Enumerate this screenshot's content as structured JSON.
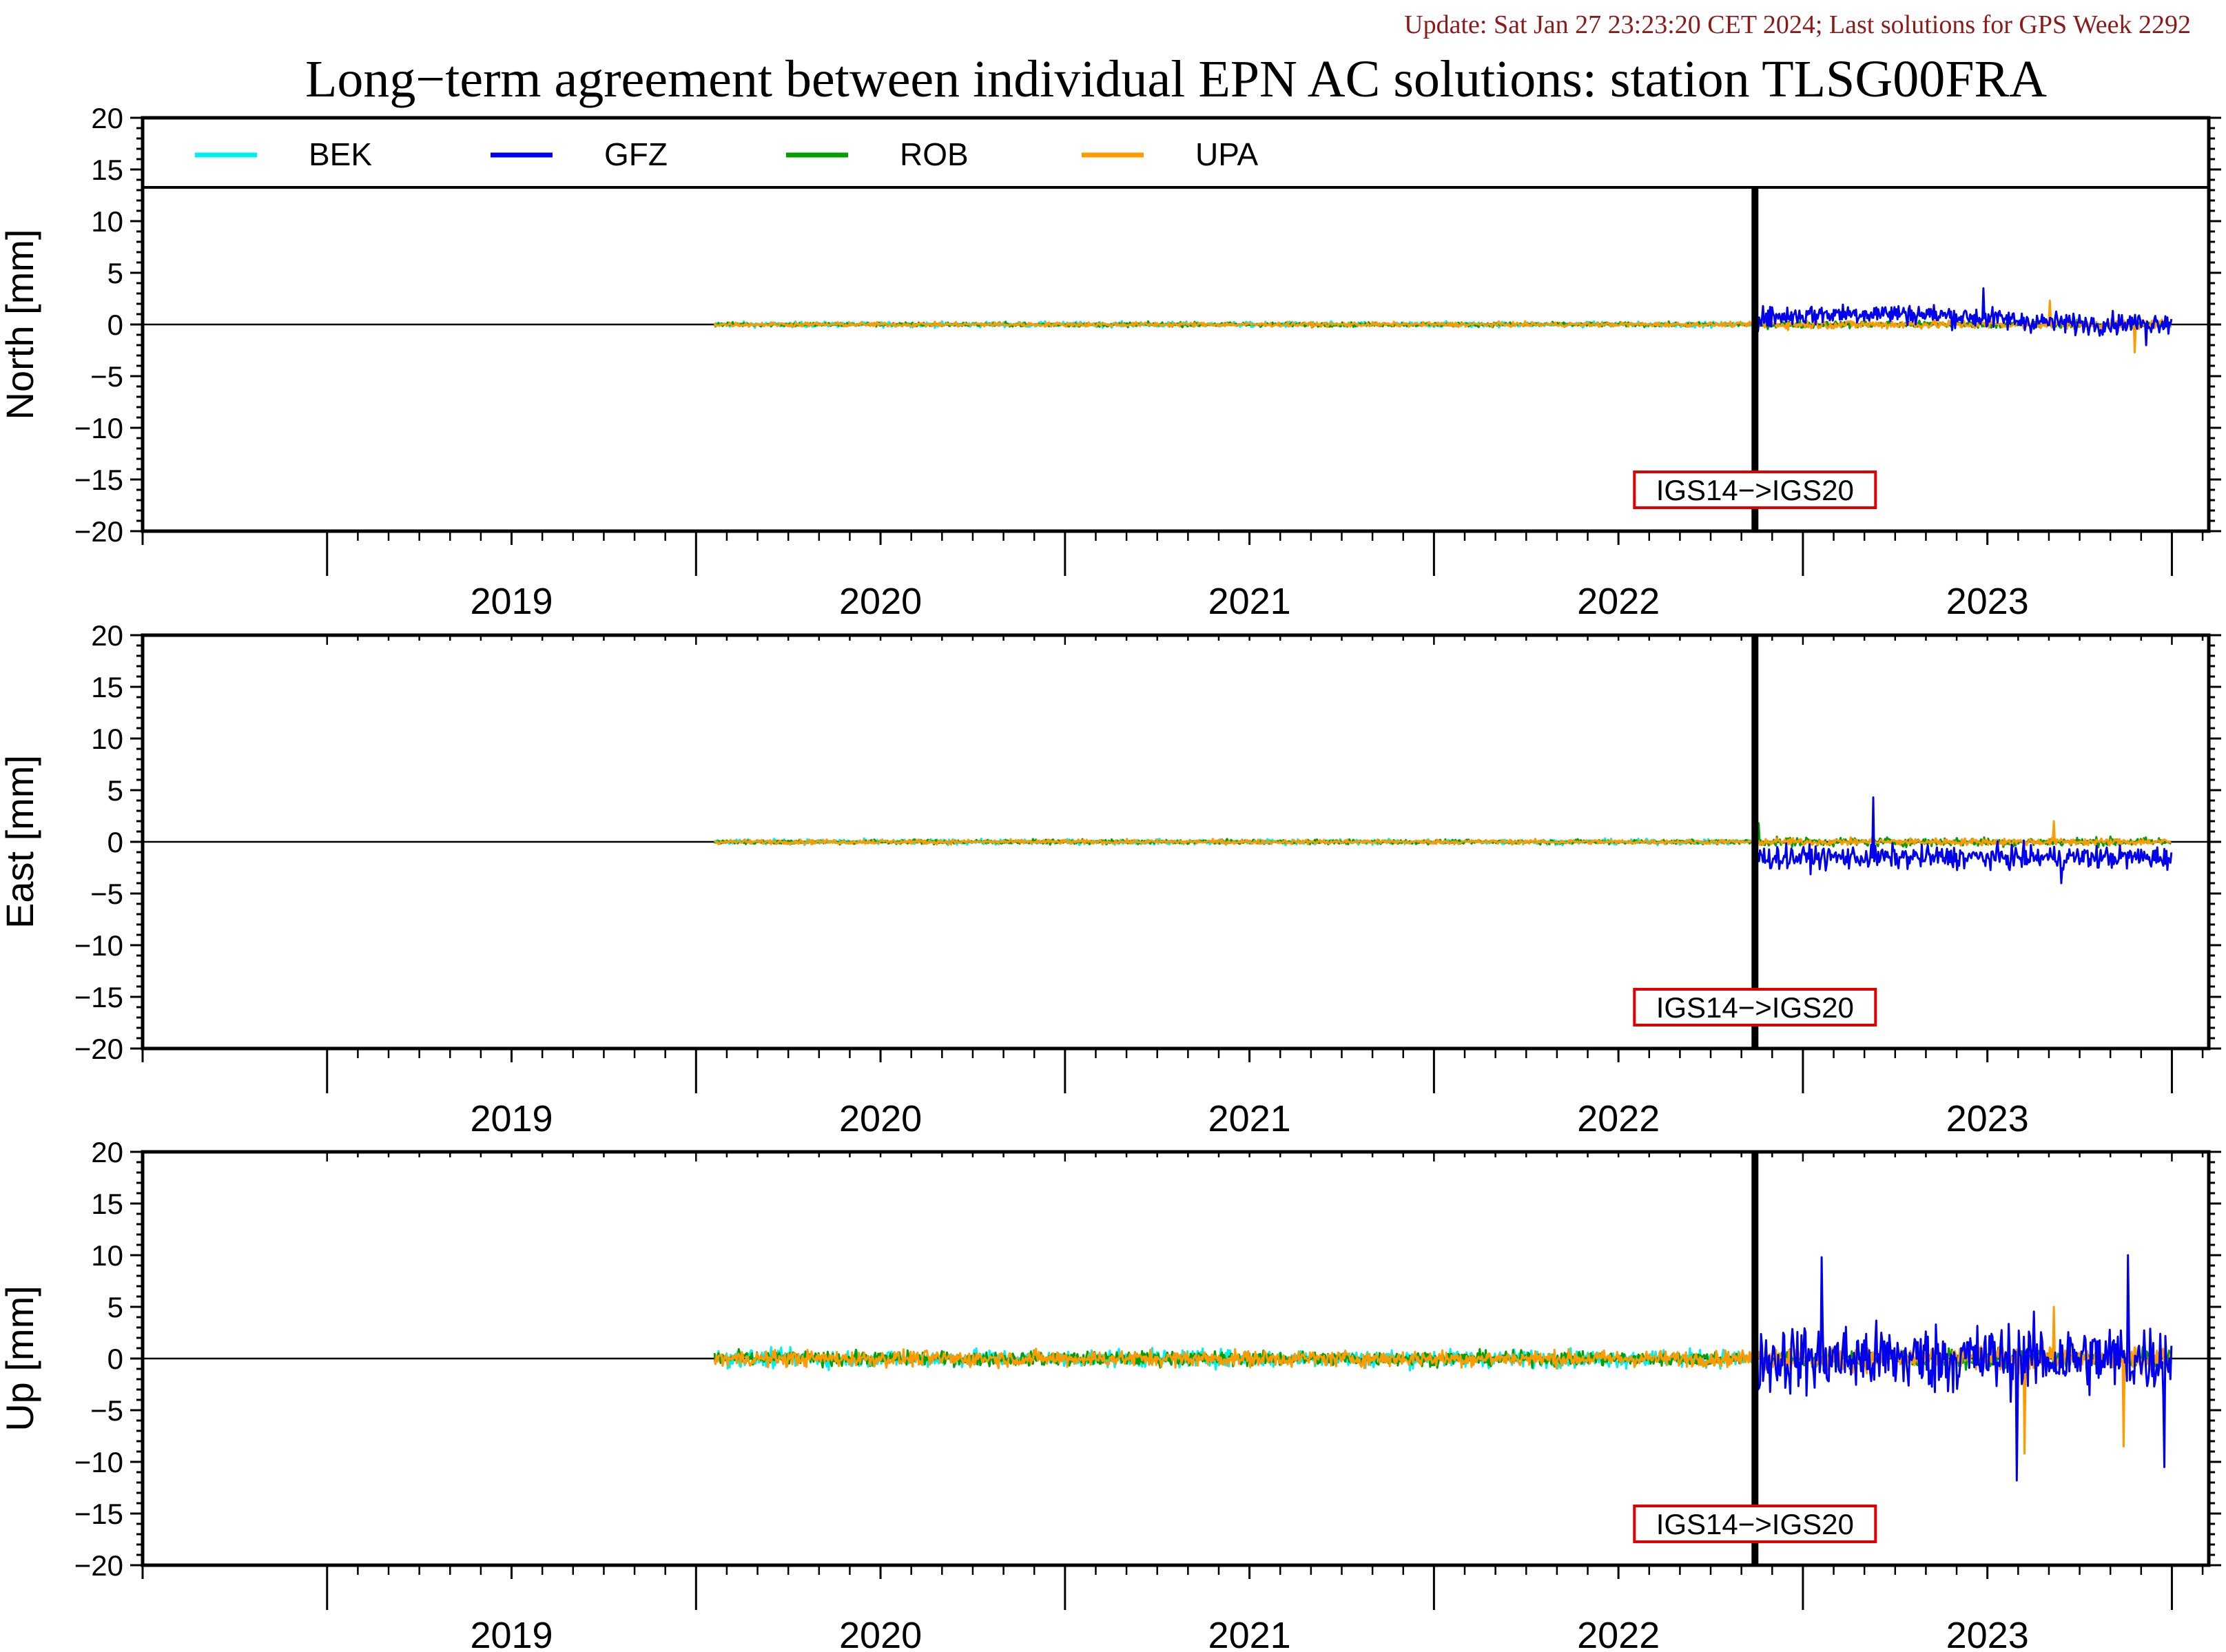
{
  "header": {
    "update_text": "Update: Sat Jan 27 23:23:20 CET 2024; Last solutions for GPS Week 2292",
    "title": "Long−term agreement between individual EPN AC solutions: station TLSG00FRA"
  },
  "colors": {
    "BEK": "#00f0f0",
    "GFZ": "#0000ee",
    "ROB": "#00a000",
    "UPA": "#ff9a00",
    "annotation_box": "#e00000"
  },
  "chart_data": {
    "type": "line",
    "x_range": [
      2018.5,
      2024.1
    ],
    "y_range": [
      -20,
      20
    ],
    "y_ticks": [
      "20",
      "15",
      "10",
      "5",
      "0",
      "−5",
      "−10",
      "−15",
      "−20"
    ],
    "x_year_labels": [
      "2019",
      "2020",
      "2021",
      "2022",
      "2023"
    ],
    "legend": {
      "placement": "top-left",
      "entries": [
        "BEK",
        "GFZ",
        "ROB",
        "UPA"
      ]
    },
    "break": {
      "x": 2022.87,
      "label": "IGS14−>IGS20"
    },
    "series_periods": {
      "BEK": [
        2020.05,
        2022.87
      ],
      "ROB": [
        2020.05,
        2024.0
      ],
      "UPA": [
        2020.05,
        2024.0
      ],
      "GFZ": [
        2022.87,
        2024.0
      ]
    },
    "panels": [
      {
        "name": "North",
        "ylabel": "North [mm]",
        "show_legend": true,
        "amplitude_mm": {
          "before": {
            "BEK": 0.3,
            "ROB": 0.25,
            "UPA": 0.25
          },
          "after": {
            "GFZ": 1.2,
            "ROB": 0.4,
            "UPA": 0.5
          }
        },
        "extreme_points": [
          {
            "series": "GFZ",
            "x": 2023.49,
            "y": 3.5
          },
          {
            "series": "UPA",
            "x": 2023.67,
            "y": 2.3
          },
          {
            "series": "UPA",
            "x": 2023.9,
            "y": -2.7
          },
          {
            "series": "GFZ",
            "x": 2023.93,
            "y": -2.0
          }
        ]
      },
      {
        "name": "East",
        "ylabel": "East [mm]",
        "show_legend": false,
        "amplitude_mm": {
          "before": {
            "BEK": 0.3,
            "ROB": 0.25,
            "UPA": 0.25
          },
          "after": {
            "GFZ": 1.3,
            "ROB": 0.5,
            "UPA": 0.4
          }
        },
        "gfz_offset_mm": -1.5,
        "extreme_points": [
          {
            "series": "GFZ",
            "x": 2023.19,
            "y": 4.3
          },
          {
            "series": "GFZ",
            "x": 2023.7,
            "y": -4.0
          },
          {
            "series": "UPA",
            "x": 2023.68,
            "y": 2.0
          },
          {
            "series": "ROB",
            "x": 2022.88,
            "y": 1.8
          }
        ]
      },
      {
        "name": "Up",
        "ylabel": "Up [mm]",
        "show_legend": false,
        "amplitude_mm": {
          "before": {
            "BEK": 1.0,
            "ROB": 0.8,
            "UPA": 0.9
          },
          "after": {
            "GFZ": 4.0,
            "ROB": 1.0,
            "UPA": 1.4
          }
        },
        "extreme_points": [
          {
            "series": "GFZ",
            "x": 2023.05,
            "y": 9.8
          },
          {
            "series": "GFZ",
            "x": 2023.58,
            "y": -11.8
          },
          {
            "series": "UPA",
            "x": 2023.6,
            "y": -9.2
          },
          {
            "series": "GFZ",
            "x": 2023.88,
            "y": 10.0
          },
          {
            "series": "UPA",
            "x": 2023.87,
            "y": -8.5
          },
          {
            "series": "GFZ",
            "x": 2023.98,
            "y": -10.5
          },
          {
            "series": "UPA",
            "x": 2023.68,
            "y": 5.0
          }
        ]
      }
    ]
  }
}
